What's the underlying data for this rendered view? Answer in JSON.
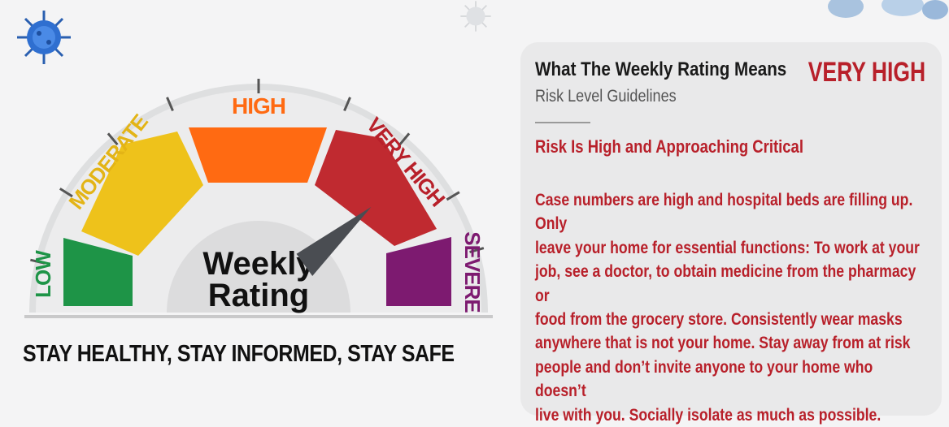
{
  "gauge": {
    "center_label_line1": "Weekly",
    "center_label_line2": "Rating",
    "segments": [
      {
        "label": "LOW",
        "color": "#1e9447"
      },
      {
        "label": "MODERATE",
        "color": "#eec21b"
      },
      {
        "label": "HIGH",
        "color": "#ff6a12"
      },
      {
        "label": "VERY HIGH",
        "color": "#c02a30"
      },
      {
        "label": "SEVERE",
        "color": "#7d1a70"
      }
    ],
    "needle_level": 0.76,
    "needle_color": "#4a4d52"
  },
  "tagline": "STAY HEALTHY, STAY INFORMED, STAY SAFE",
  "panel": {
    "title": "What The Weekly Rating Means",
    "subtitle": "Risk Level Guidelines",
    "level": "VERY HIGH",
    "heading": "Risk Is High and Approaching Critical",
    "body_lines": [
      "Case numbers are high and hospital beds are filling up. Only",
      "leave your home for essential functions: To work at your",
      "job, see a doctor, to obtain medicine from the pharmacy or",
      "food from the grocery store. Consistently wear masks",
      "anywhere that is not your home. Stay away from at risk",
      "people and don’t invite anyone to your home who doesn’t",
      "live with you.  Socially isolate as much as possible."
    ]
  },
  "colors": {
    "accent_red": "#b8202a",
    "dark_text": "#111111"
  },
  "icons": [
    "virus-icon"
  ]
}
